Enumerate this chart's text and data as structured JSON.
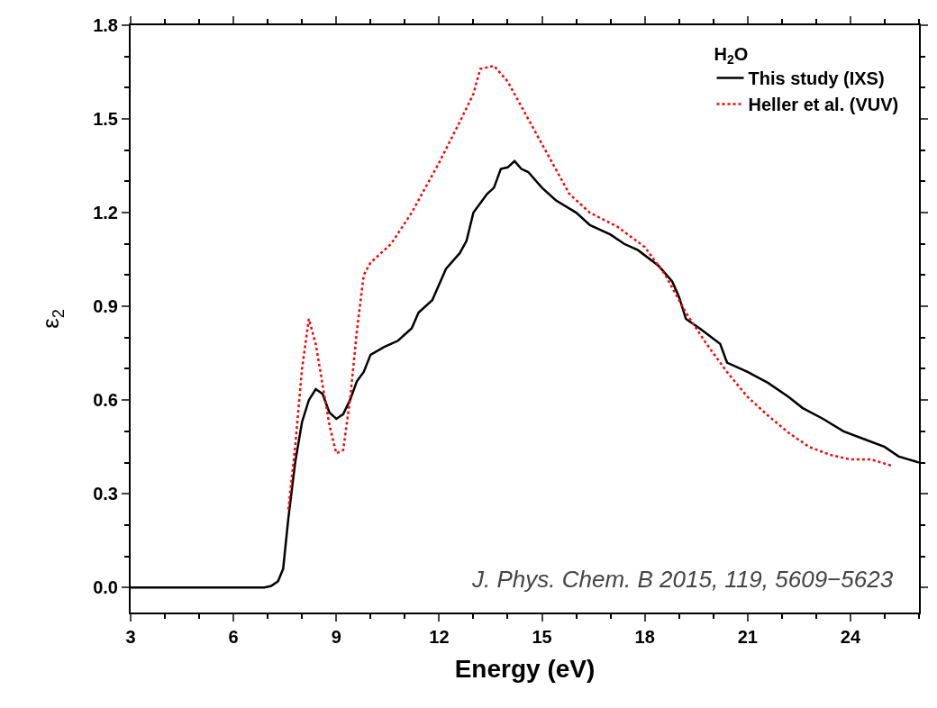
{
  "chart_data": {
    "type": "line",
    "xlabel": "Energy (eV)",
    "ylabel": "ε$_{2}$",
    "legend_title": "H$_{2}$O",
    "xlim": [
      3,
      26
    ],
    "xticks": [
      3,
      6,
      9,
      12,
      15,
      18,
      21,
      24
    ],
    "ylim": [
      -0.08,
      1.8
    ],
    "yticks": [
      {
        "value": 0,
        "label": "0.0"
      },
      {
        "value": 0.3,
        "label": "0.3"
      },
      {
        "value": 0.6,
        "label": "0.6"
      },
      {
        "value": 0.9,
        "label": "0.9"
      },
      {
        "value": 1.2,
        "label": "1.2"
      },
      {
        "value": 1.5,
        "label": "1.5"
      },
      {
        "value": 1.8,
        "label": "1.8"
      }
    ],
    "legend": "top right",
    "annotations": [
      "J. Phys. Chem. B 2015, 119, 5609−5623"
    ],
    "series": [
      {
        "name": "This study (IXS)",
        "color": "#000000",
        "line_style": "solid",
        "x": [
          3,
          6.9,
          7.1,
          7.3,
          7.45,
          7.6,
          7.8,
          8.0,
          8.2,
          8.4,
          8.6,
          8.8,
          9.0,
          9.2,
          9.4,
          9.6,
          9.8,
          10.0,
          10.4,
          10.8,
          11.2,
          11.4,
          11.8,
          12.2,
          12.6,
          12.8,
          13.0,
          13.4,
          13.6,
          13.8,
          14.0,
          14.2,
          14.4,
          14.6,
          15.0,
          15.4,
          16.0,
          16.4,
          17.0,
          17.4,
          17.8,
          18.4,
          18.8,
          19.0,
          19.2,
          19.6,
          20.2,
          20.4,
          21.0,
          21.6,
          22.2,
          22.6,
          23.2,
          23.8,
          24.4,
          25.0,
          25.4,
          26
        ],
        "values": [
          0,
          0,
          0.005,
          0.02,
          0.06,
          0.22,
          0.4,
          0.53,
          0.6,
          0.635,
          0.62,
          0.56,
          0.54,
          0.555,
          0.6,
          0.66,
          0.69,
          0.745,
          0.77,
          0.79,
          0.83,
          0.88,
          0.92,
          1.02,
          1.07,
          1.11,
          1.2,
          1.26,
          1.28,
          1.34,
          1.345,
          1.365,
          1.34,
          1.33,
          1.28,
          1.24,
          1.2,
          1.16,
          1.13,
          1.1,
          1.08,
          1.03,
          0.98,
          0.93,
          0.86,
          0.83,
          0.78,
          0.72,
          0.69,
          0.655,
          0.61,
          0.575,
          0.54,
          0.5,
          0.475,
          0.45,
          0.42,
          0.4
        ]
      },
      {
        "name": "Heller et al. (VUV)",
        "color": "#ff0000",
        "line_style": "dotted",
        "x": [
          7.6,
          7.8,
          8.0,
          8.2,
          8.4,
          8.6,
          8.8,
          9.0,
          9.2,
          9.4,
          9.6,
          9.8,
          10.0,
          10.6,
          11.2,
          12.0,
          12.6,
          13.0,
          13.2,
          13.6,
          14.0,
          14.6,
          15.2,
          15.8,
          16.4,
          17.2,
          18.0,
          18.6,
          19.2,
          19.8,
          20.4,
          21.0,
          21.6,
          22.2,
          22.8,
          23.4,
          24.0,
          24.6,
          25.2
        ],
        "values": [
          0.25,
          0.45,
          0.7,
          0.86,
          0.78,
          0.65,
          0.52,
          0.43,
          0.44,
          0.6,
          0.82,
          1.0,
          1.04,
          1.1,
          1.2,
          1.36,
          1.49,
          1.58,
          1.66,
          1.67,
          1.62,
          1.5,
          1.38,
          1.26,
          1.2,
          1.155,
          1.09,
          1.0,
          0.88,
          0.78,
          0.69,
          0.61,
          0.55,
          0.495,
          0.45,
          0.425,
          0.41,
          0.41,
          0.39
        ]
      }
    ]
  }
}
